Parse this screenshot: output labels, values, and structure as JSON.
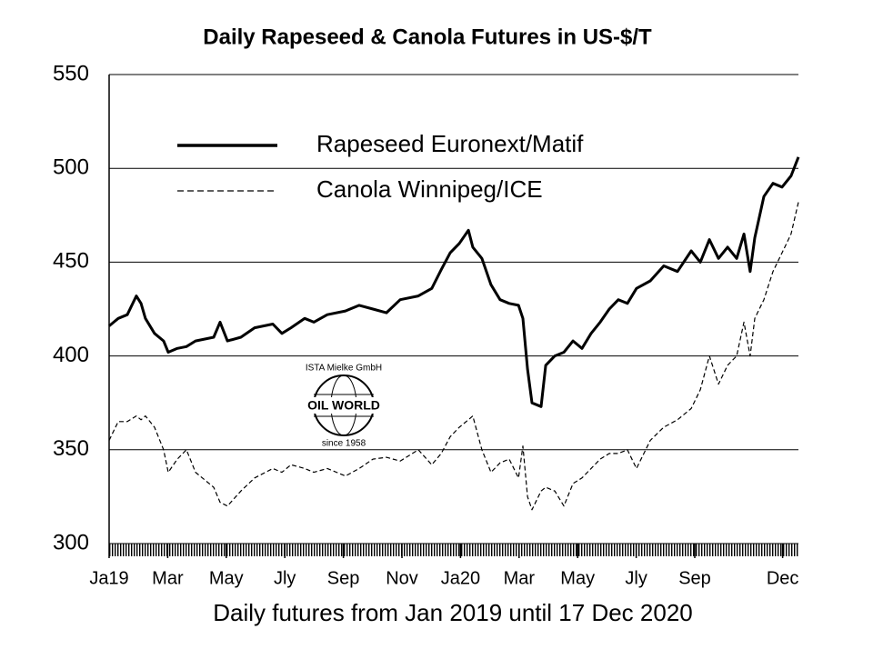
{
  "chart_data": {
    "type": "line",
    "title": "Daily Rapeseed & Canola Futures in US-$/T",
    "x_label": "Daily futures from Jan 2019 until 17 Dec 2020",
    "watermark": [
      "ISTA Mielke GmbH",
      "OIL WORLD",
      "since 1958"
    ],
    "x": [
      0,
      0.31,
      0.62,
      0.93,
      1.09,
      1.24,
      1.55,
      1.86,
      2.02,
      2.33,
      2.64,
      2.95,
      3.57,
      3.79,
      4.04,
      4.5,
      4.97,
      5.59,
      5.9,
      6.21,
      6.68,
      6.99,
      7.45,
      8.07,
      8.54,
      9.01,
      9.47,
      9.94,
      10.56,
      11.02,
      11.34,
      11.65,
      11.96,
      12.27,
      12.42,
      12.73,
      13.04,
      13.35,
      13.66,
      13.98,
      14.13,
      14.29,
      14.44,
      14.75,
      14.91,
      15.22,
      15.53,
      15.84,
      16.15,
      16.46,
      16.77,
      17.08,
      17.39,
      17.7,
      18.01,
      18.48,
      18.94,
      19.41,
      19.88,
      20.19,
      20.5,
      20.81,
      21.12,
      21.43,
      21.68,
      21.89,
      22.05,
      22.36,
      22.67,
      22.98,
      23.29,
      23.54
    ],
    "series": [
      {
        "name": "Rapeseed Euronext/Matif",
        "color": "#000000",
        "style": "solid",
        "values": [
          416,
          420,
          422,
          432,
          428,
          420,
          412,
          408,
          402,
          404,
          405,
          408,
          410,
          418,
          408,
          410,
          415,
          417,
          412,
          415,
          420,
          418,
          422,
          424,
          427,
          425,
          423,
          430,
          432,
          436,
          446,
          455,
          460,
          467,
          458,
          452,
          438,
          430,
          428,
          427,
          420,
          393,
          375,
          373,
          395,
          400,
          402,
          408,
          404,
          412,
          418,
          425,
          430,
          428,
          436,
          440,
          448,
          445,
          456,
          450,
          462,
          452,
          458,
          452,
          465,
          445,
          463,
          485,
          492,
          490,
          496,
          506
        ]
      },
      {
        "name": "Canola Winnipeg/ICE",
        "color": "#000000",
        "style": "dashed",
        "values": [
          355,
          365,
          365,
          368,
          366,
          368,
          362,
          350,
          338,
          345,
          350,
          338,
          330,
          322,
          320,
          328,
          335,
          340,
          338,
          342,
          340,
          338,
          340,
          336,
          340,
          345,
          346,
          344,
          350,
          342,
          348,
          357,
          362,
          366,
          368,
          350,
          338,
          343,
          345,
          335,
          352,
          325,
          318,
          328,
          330,
          328,
          320,
          332,
          335,
          340,
          345,
          348,
          348,
          350,
          340,
          355,
          362,
          366,
          372,
          382,
          400,
          385,
          395,
          400,
          418,
          400,
          420,
          430,
          445,
          455,
          465,
          482
        ]
      }
    ],
    "xlim": [
      0,
      23.54
    ],
    "xticks": [
      {
        "value": 0,
        "label": "Ja19"
      },
      {
        "value": 2,
        "label": "Mar"
      },
      {
        "value": 4,
        "label": "May"
      },
      {
        "value": 6,
        "label": "Jly"
      },
      {
        "value": 8,
        "label": "Sep"
      },
      {
        "value": 10,
        "label": "Nov"
      },
      {
        "value": 12,
        "label": "Ja20"
      },
      {
        "value": 14,
        "label": "Mar"
      },
      {
        "value": 16,
        "label": "May"
      },
      {
        "value": 18,
        "label": "Jly"
      },
      {
        "value": 20,
        "label": "Sep"
      },
      {
        "value": 23,
        "label": "Dec"
      }
    ],
    "ylim": [
      300,
      550
    ],
    "yticks": [
      300,
      350,
      400,
      450,
      500,
      550
    ],
    "grid": true
  }
}
